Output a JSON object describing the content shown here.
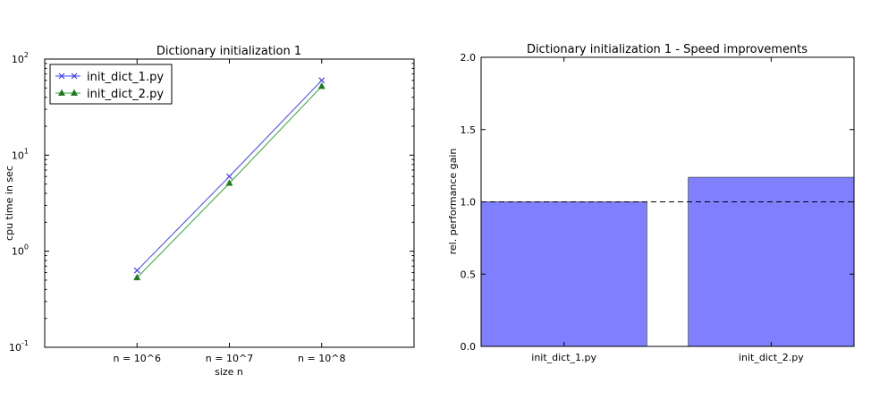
{
  "chart_data": [
    {
      "type": "line",
      "title": "Dictionary initialization 1",
      "xlabel": "size n",
      "ylabel": "cpu time in sec",
      "yscale": "log",
      "ylim": [
        0.1,
        100
      ],
      "xlim": [
        -1,
        3
      ],
      "categories": [
        "n = 10^6",
        "n = 10^7",
        "n = 10^8"
      ],
      "y_ticks": [
        {
          "base": "10",
          "exp": "-1",
          "value": 0.1
        },
        {
          "base": "10",
          "exp": "0",
          "value": 1
        },
        {
          "base": "10",
          "exp": "1",
          "value": 10
        },
        {
          "base": "10",
          "exp": "2",
          "value": 100
        }
      ],
      "legend_position": "upper-left",
      "grid": false,
      "series": [
        {
          "name": "init_dict_1.py",
          "values": [
            0.63,
            6.0,
            60.0
          ],
          "color": "#4040ff",
          "marker": "x"
        },
        {
          "name": "init_dict_2.py",
          "values": [
            0.53,
            5.1,
            52.0
          ],
          "color": "#1f7a1f",
          "line_color": "#33a833",
          "marker": "triangle"
        }
      ]
    },
    {
      "type": "bar",
      "title": "Dictionary initialization 1 - Speed improvements",
      "xlabel": "",
      "ylabel": "rel. performance gain",
      "ylim": [
        0.0,
        2.0
      ],
      "y_ticks": [
        "0.0",
        "0.5",
        "1.0",
        "1.5",
        "2.0"
      ],
      "categories": [
        "init_dict_1.py",
        "init_dict_2.py"
      ],
      "values": [
        1.0,
        1.17
      ],
      "bar_color": "#8080ff",
      "reference_line": 1.0,
      "grid": false
    }
  ]
}
